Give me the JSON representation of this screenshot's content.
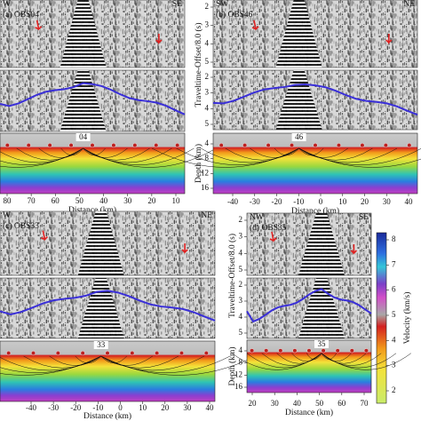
{
  "panels": [
    {
      "label": "(a) OBS04",
      "left_dir": "W",
      "right_dir": "SE",
      "station": "04",
      "x_ticks": [
        80,
        70,
        60,
        50,
        40,
        30,
        20,
        10
      ],
      "x_label": "Distance (km)"
    },
    {
      "label": "(b) OBS46",
      "left_dir": "SW",
      "right_dir": "NE",
      "station": "46",
      "x_ticks": [
        -40,
        -30,
        -20,
        -10,
        0,
        10,
        20,
        30,
        40
      ],
      "x_label": "Distance (km)"
    },
    {
      "label": "(c) OBS33",
      "left_dir": "W",
      "right_dir": "NE",
      "station": "33",
      "x_ticks": [
        -40,
        -30,
        -20,
        -10,
        0,
        10,
        20,
        30,
        40
      ],
      "x_label": "Distance (km)"
    },
    {
      "label": "(d) OBS35",
      "left_dir": "NW",
      "right_dir": "SE",
      "station": "35",
      "x_ticks": [
        20,
        30,
        40,
        50,
        60,
        70
      ],
      "x_label": "Distance (km)"
    }
  ],
  "y_axis": {
    "time_label": "Traveltime-Offset/8.0 (s)",
    "time_ticks": [
      2,
      3,
      4,
      5
    ],
    "depth_label": "Depth (km)",
    "depth_ticks": [
      4,
      8,
      12,
      16
    ]
  },
  "colorbar": {
    "label": "Velocity (km/s)",
    "ticks": [
      8,
      7,
      6,
      5,
      4,
      3,
      2
    ]
  }
}
